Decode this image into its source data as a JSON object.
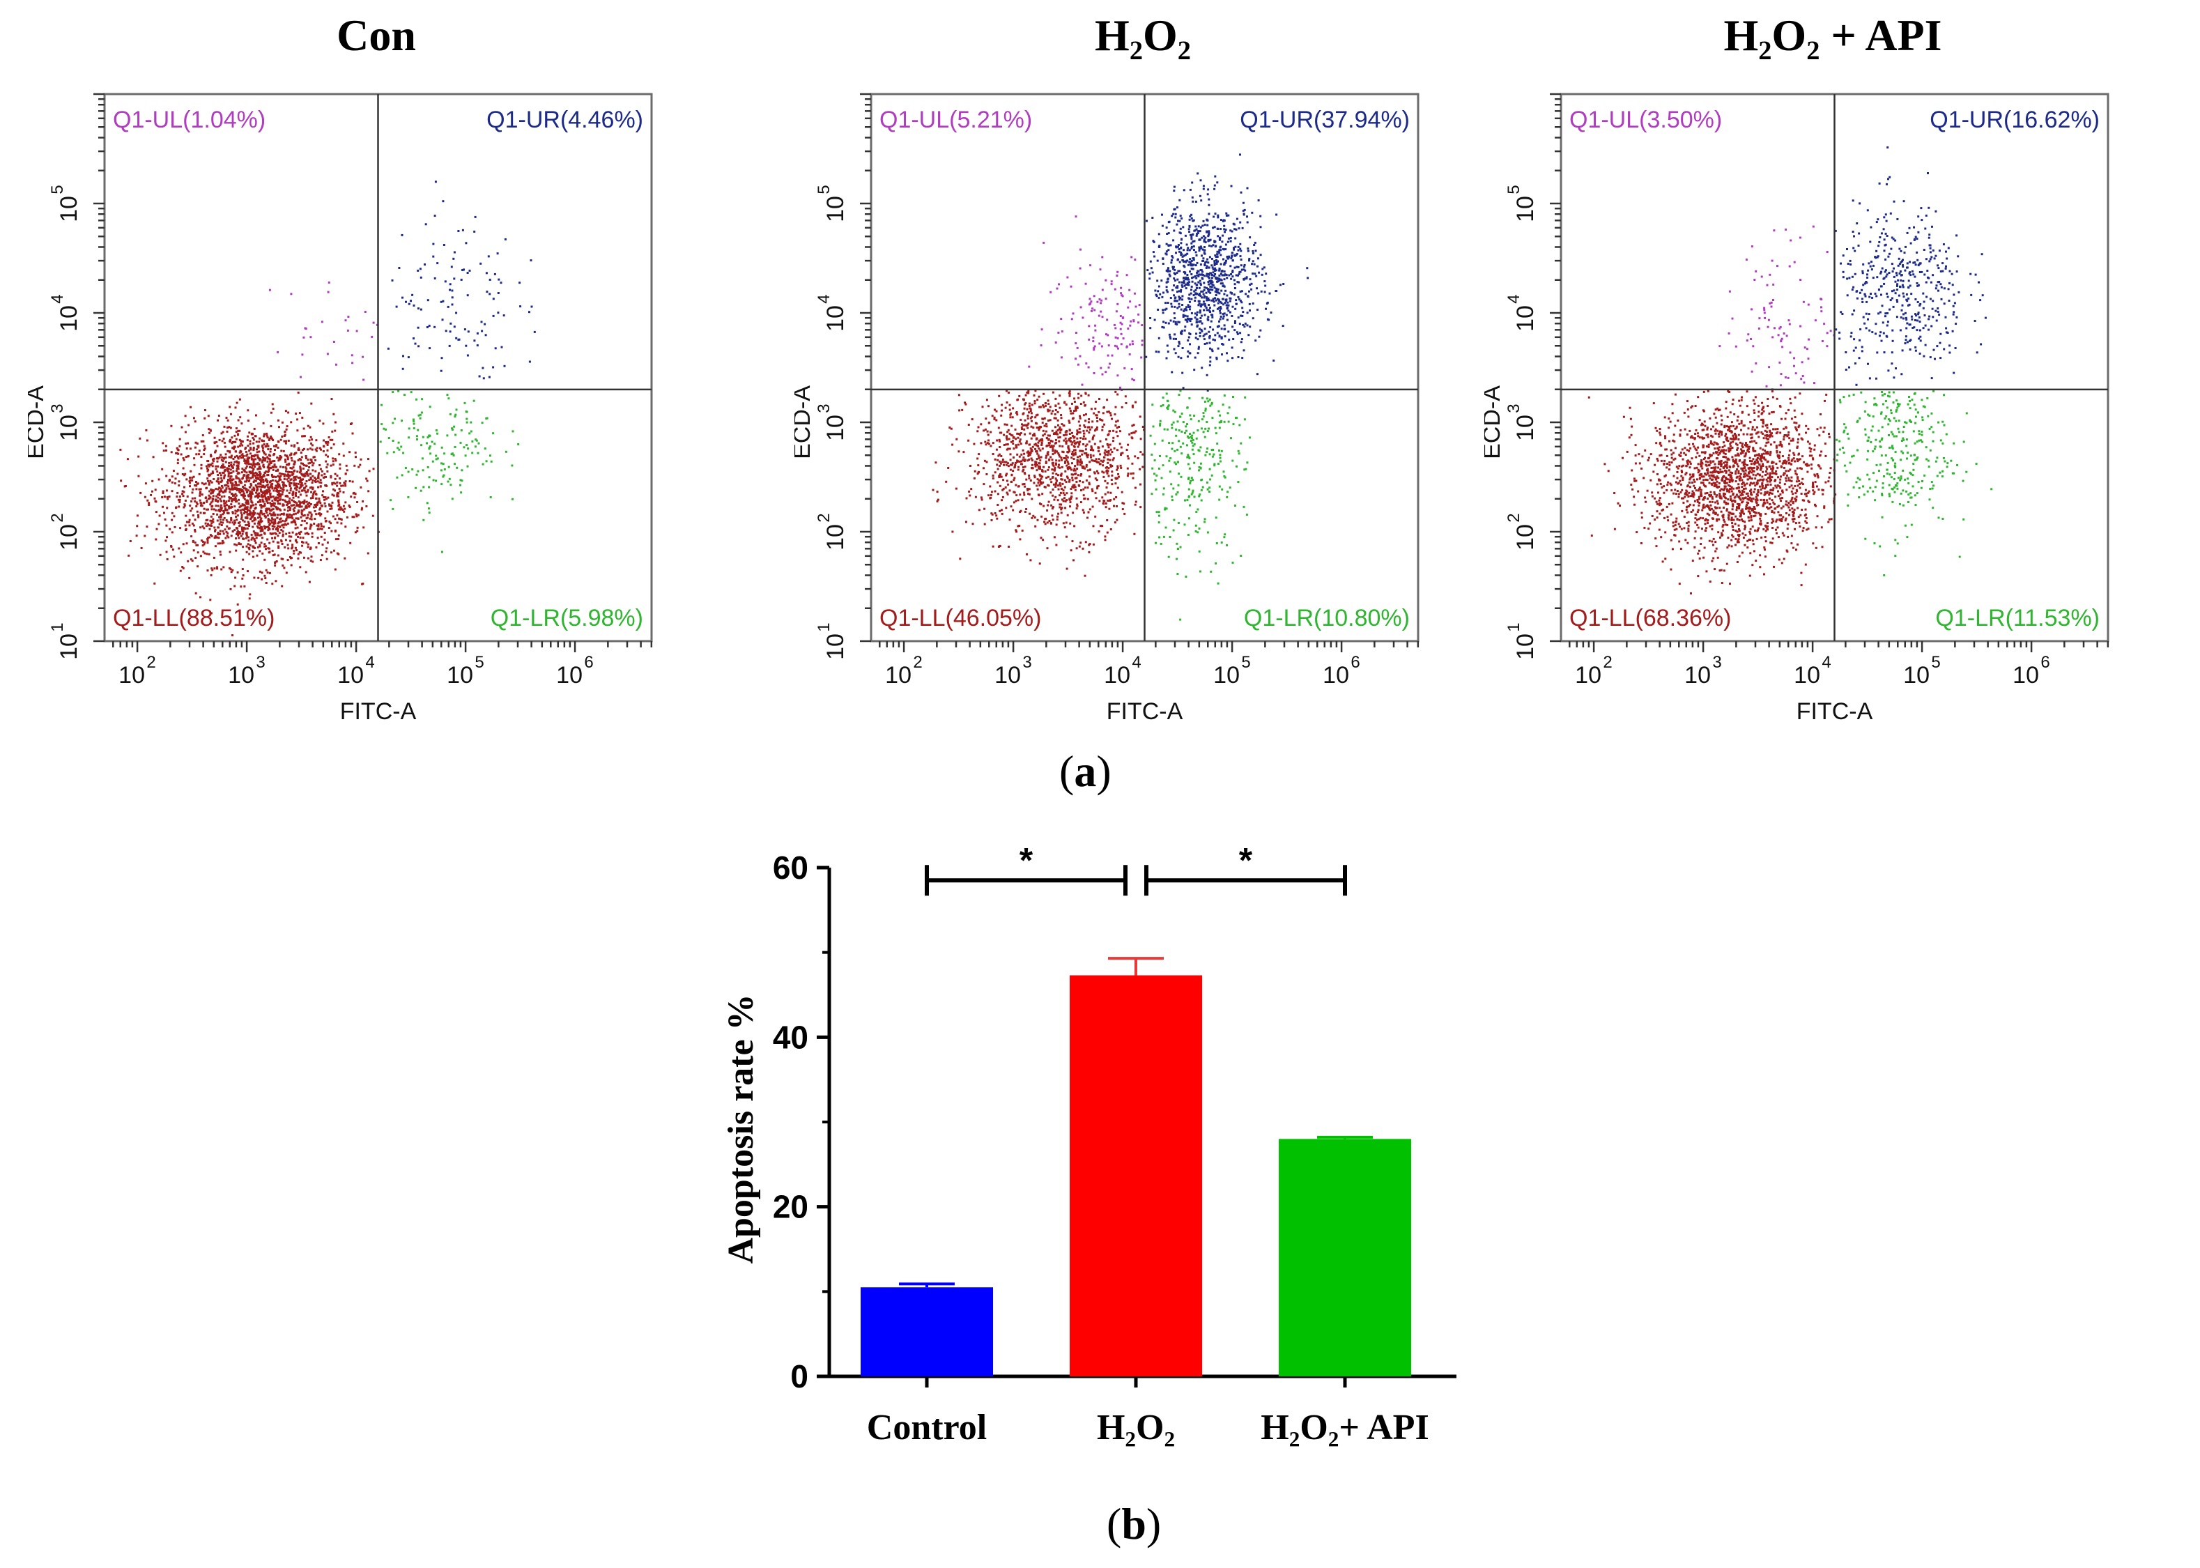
{
  "panel_labels": {
    "a": "a",
    "b": "b"
  },
  "colors": {
    "LL": "#a31b1b",
    "LR": "#2fb52f",
    "UL": "#b03cc0",
    "UR": "#1c2a8a",
    "bar_control": "#0000ff",
    "bar_h2o2": "#ff0000",
    "bar_api": "#00c000",
    "error_h2o2": "#e83838"
  },
  "flow_panels": [
    {
      "title": "Con",
      "xlabel": "FITC-A",
      "ylabel": "ECD-A",
      "quadrants": {
        "UL": "Q1-UL(1.04%)",
        "UR": "Q1-UR(4.46%)",
        "LL": "Q1-LL(88.51%)",
        "LR": "Q1-LR(5.98%)"
      }
    },
    {
      "title": "H₂O₂",
      "xlabel": "FITC-A",
      "ylabel": "ECD-A",
      "quadrants": {
        "UL": "Q1-UL(5.21%)",
        "UR": "Q1-UR(37.94%)",
        "LL": "Q1-LL(46.05%)",
        "LR": "Q1-LR(10.80%)"
      }
    },
    {
      "title": "H₂O₂ + API",
      "xlabel": "FITC-A",
      "ylabel": "ECD-A",
      "quadrants": {
        "UL": "Q1-UL(3.50%)",
        "UR": "Q1-UR(16.62%)",
        "LL": "Q1-LL(68.36%)",
        "LR": "Q1-LR(11.53%)"
      }
    }
  ],
  "flow_axes": {
    "x_ticks": [
      "10",
      "10",
      "10",
      "10",
      "10"
    ],
    "x_exponents": [
      "2",
      "3",
      "4",
      "5",
      "6"
    ],
    "y_ticks": [
      "10",
      "10",
      "10",
      "10",
      "10"
    ],
    "y_exponents": [
      "1",
      "2",
      "3",
      "4",
      "5"
    ]
  },
  "chart_data": [
    {
      "type": "scatter",
      "title": "Con",
      "xlabel": "FITC-A",
      "ylabel": "ECD-A",
      "x_scale": "log",
      "y_scale": "log",
      "quadrant_percentages": {
        "UL": 1.04,
        "UR": 4.46,
        "LL": 88.51,
        "LR": 5.98
      }
    },
    {
      "type": "scatter",
      "title": "H₂O₂",
      "xlabel": "FITC-A",
      "ylabel": "ECD-A",
      "x_scale": "log",
      "y_scale": "log",
      "quadrant_percentages": {
        "UL": 5.21,
        "UR": 37.94,
        "LL": 46.05,
        "LR": 10.8
      }
    },
    {
      "type": "scatter",
      "title": "H₂O₂ + API",
      "xlabel": "FITC-A",
      "ylabel": "ECD-A",
      "x_scale": "log",
      "y_scale": "log",
      "quadrant_percentages": {
        "UL": 3.5,
        "UR": 16.62,
        "LL": 68.36,
        "LR": 11.53
      }
    },
    {
      "type": "bar",
      "categories": [
        "Control",
        "H₂O₂",
        "H₂O₂+ API"
      ],
      "values": [
        10.5,
        47.3,
        28.0
      ],
      "errors": [
        0.4,
        2.0,
        0.2
      ],
      "ylabel": "Apoptosis rate %",
      "ylim": [
        0,
        60
      ],
      "yticks": [
        0,
        20,
        40,
        60
      ],
      "significance": [
        {
          "from": "Control",
          "to": "H₂O₂",
          "label": "*"
        },
        {
          "from": "H₂O₂",
          "to": "H₂O₂+ API",
          "label": "*"
        }
      ]
    }
  ]
}
